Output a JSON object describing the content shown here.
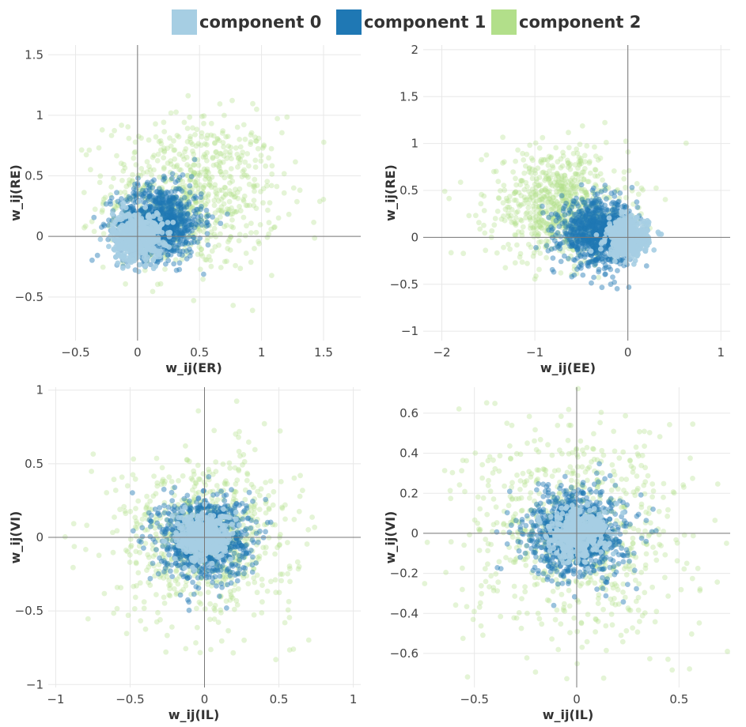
{
  "legend": {
    "items": [
      {
        "label": "component 0",
        "color": "#a6cee3"
      },
      {
        "label": "component 1",
        "color": "#1f78b4"
      },
      {
        "label": "component 2",
        "color": "#b2df8a"
      }
    ]
  },
  "chart_data": [
    {
      "type": "scatter",
      "xlabel": "w_ij(ER)",
      "ylabel": "w_ij(RE)",
      "xlim": [
        -0.72,
        1.8
      ],
      "ylim": [
        -0.86,
        1.58
      ],
      "xticks": [
        -0.5,
        0,
        0.5,
        1,
        1.5
      ],
      "xtick_labels": [
        "−0.5",
        "0",
        "0.5",
        "1",
        "1.5"
      ],
      "yticks": [
        -0.5,
        0,
        0.5,
        1,
        1.5
      ],
      "ytick_labels": [
        "−0.5",
        "0",
        "0.5",
        "1",
        "1.5"
      ],
      "grid": true,
      "series": [
        {
          "name": "component 2",
          "center": [
            0.45,
            0.35
          ],
          "spread": [
            0.35,
            0.32
          ]
        },
        {
          "name": "component 1",
          "center": [
            0.18,
            0.12
          ],
          "spread": [
            0.17,
            0.15
          ]
        },
        {
          "name": "component 0",
          "center": [
            0.0,
            0.0
          ],
          "spread": [
            0.1,
            0.1
          ]
        }
      ]
    },
    {
      "type": "scatter",
      "xlabel": "w_ij(EE)",
      "ylabel": "w_ij(RE)",
      "xlim": [
        -2.2,
        1.1
      ],
      "ylim": [
        -1.1,
        2.05
      ],
      "xticks": [
        -2,
        -1,
        0,
        1
      ],
      "xtick_labels": [
        "−2",
        "−1",
        "0",
        "1"
      ],
      "yticks": [
        -1,
        -0.5,
        0,
        0.5,
        1,
        1.5,
        2
      ],
      "ytick_labels": [
        "−1",
        "−0.5",
        "0",
        "0.5",
        "1",
        "1.5",
        "2"
      ],
      "grid": true,
      "series": [
        {
          "name": "component 2",
          "center": [
            -0.75,
            0.35
          ],
          "spread": [
            0.38,
            0.3
          ]
        },
        {
          "name": "component 1",
          "center": [
            -0.32,
            0.05
          ],
          "spread": [
            0.2,
            0.17
          ]
        },
        {
          "name": "component 0",
          "center": [
            0.0,
            0.0
          ],
          "spread": [
            0.11,
            0.1
          ]
        }
      ]
    },
    {
      "type": "scatter",
      "xlabel": "w_ij(IL)",
      "ylabel": "w_ij(VI)",
      "xlim": [
        -1.05,
        1.05
      ],
      "ylim": [
        -1.02,
        1.02
      ],
      "xticks": [
        -1,
        -0.5,
        0,
        0.5,
        1
      ],
      "xtick_labels": [
        "−1",
        "−0.5",
        "0",
        "0.5",
        "1"
      ],
      "yticks": [
        -1,
        -0.5,
        0,
        0.5,
        1
      ],
      "ytick_labels": [
        "−1",
        "−0.5",
        "0",
        "0.5",
        "1"
      ],
      "grid": true,
      "series": [
        {
          "name": "component 2",
          "center": [
            0.0,
            0.0
          ],
          "spread": [
            0.3,
            0.28
          ]
        },
        {
          "name": "component 1",
          "center": [
            0.0,
            0.0
          ],
          "spread": [
            0.15,
            0.14
          ]
        },
        {
          "name": "component 0",
          "center": [
            0.0,
            0.0
          ],
          "spread": [
            0.09,
            0.08
          ]
        }
      ]
    },
    {
      "type": "scatter",
      "xlabel": "w_ij(IL)",
      "ylabel": "w_ij(VI)",
      "xlim": [
        -0.75,
        0.75
      ],
      "ylim": [
        -0.77,
        0.73
      ],
      "xticks": [
        -0.5,
        0,
        0.5
      ],
      "xtick_labels": [
        "−0.5",
        "0",
        "0.5"
      ],
      "yticks": [
        -0.6,
        -0.4,
        -0.2,
        0,
        0.2,
        0.4,
        0.6
      ],
      "ytick_labels": [
        "−0.6",
        "−0.4",
        "−0.2",
        "0",
        "0.2",
        "0.4",
        "0.6"
      ],
      "grid": true,
      "series": [
        {
          "name": "component 2",
          "center": [
            0.0,
            0.0
          ],
          "spread": [
            0.28,
            0.28
          ]
        },
        {
          "name": "component 1",
          "center": [
            0.0,
            0.0
          ],
          "spread": [
            0.12,
            0.11
          ]
        },
        {
          "name": "component 0",
          "center": [
            0.0,
            0.0
          ],
          "spread": [
            0.07,
            0.06
          ]
        }
      ]
    }
  ]
}
